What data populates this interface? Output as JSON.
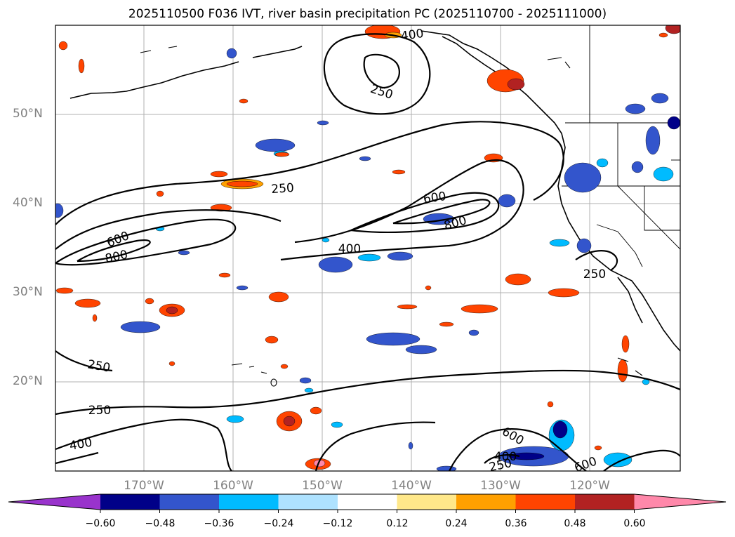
{
  "title": "2025110500 F036 IVT, river basin precipitation PC (2025110700 - 2025111000)",
  "axes": {
    "latitude_labels": [
      "50°N",
      "40°N",
      "30°N",
      "20°N"
    ],
    "longitude_labels": [
      "170°W",
      "160°W",
      "150°W",
      "140°W",
      "130°W",
      "120°W"
    ]
  },
  "ivt_contours": {
    "levels": [
      250,
      400,
      600,
      800
    ],
    "labels": [
      "400",
      "250",
      "250",
      "600",
      "800",
      "400",
      "600",
      "800",
      "250",
      "250",
      "250",
      "400",
      "600",
      "400",
      "250",
      "600"
    ]
  },
  "colorbar": {
    "ticks": [
      "−0.60",
      "−0.48",
      "−0.36",
      "−0.24",
      "−0.12",
      "0.12",
      "0.24",
      "0.36",
      "0.48",
      "0.60"
    ],
    "colors": [
      "#9933cc",
      "#000088",
      "#3355cc",
      "#00bbff",
      "#aee2ff",
      "#ffffff",
      "#ffe88a",
      "#ffa000",
      "#ff4400",
      "#b22222",
      "#ff88aa"
    ]
  }
}
